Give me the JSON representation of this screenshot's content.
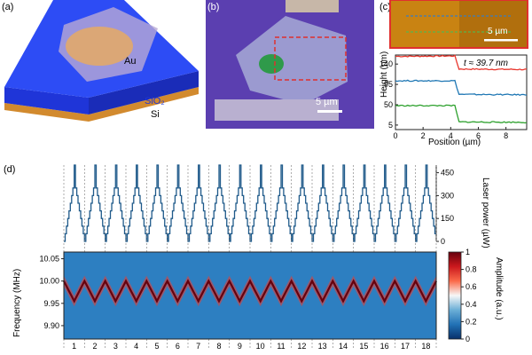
{
  "panel_a": {
    "label": "(a)",
    "au_label": "Au",
    "sio2_label": "SiO₂",
    "si_label": "Si"
  },
  "panel_b": {
    "label": "(b)",
    "scalebar": "5 µm"
  },
  "panel_c": {
    "label": "(c)",
    "scalebar": "5 µm",
    "thickness_annotation": "t ≈ 39.7 nm",
    "chart_data": {
      "type": "line",
      "xlabel": "Position (µm)",
      "ylabel": "Height (nm)",
      "xlim": [
        0,
        9.5
      ],
      "ylim": [
        -5,
        160
      ],
      "xticks": [
        0,
        2,
        4,
        6,
        8
      ],
      "yticks": [
        5,
        50,
        95,
        140
      ],
      "series": [
        {
          "color": "#e8372e",
          "x": [
            0,
            4.3,
            4.6,
            9.5
          ],
          "y": [
            157,
            158,
            129,
            128
          ]
        },
        {
          "color": "#1f77b4",
          "x": [
            0,
            4.3,
            4.6,
            9.5
          ],
          "y": [
            103,
            103,
            73,
            72
          ]
        },
        {
          "color": "#2ca02c",
          "x": [
            0,
            4.3,
            4.6,
            9.5
          ],
          "y": [
            48,
            48,
            12,
            11
          ]
        }
      ]
    }
  },
  "panel_d": {
    "label": "(d)",
    "chart_data": [
      {
        "type": "line",
        "ylabel": "Laser power (µW)",
        "ylim": [
          0,
          500
        ],
        "yticks": [
          0,
          150,
          300,
          450
        ],
        "series": [
          {
            "color": "#1f5a8a",
            "pattern": [
              0,
              50,
              100,
              150,
              200,
              250,
              300,
              350,
              500,
              350,
              300,
              250,
              200,
              150,
              100,
              50
            ],
            "cycles": 18
          }
        ]
      },
      {
        "type": "heatmap",
        "ylabel": "Frequency (MHz)",
        "ylim": [
          9.87,
          10.065
        ],
        "yticks": [
          9.9,
          9.95,
          10.0,
          10.05
        ],
        "xticks": [
          "1",
          "2",
          "3",
          "4",
          "5",
          "6",
          "7",
          "8",
          "9",
          "10",
          "11",
          "12",
          "13",
          "14",
          "15",
          "16",
          "17",
          "18"
        ],
        "resonance_max_mhz": 10.0,
        "resonance_min_mhz": 9.955,
        "cycles": 18
      }
    ],
    "colorbar": {
      "label": "Amplitude (a.u.)",
      "ticks": [
        "0",
        "0.2",
        "0.4",
        "0.6",
        "0.8",
        "1"
      ],
      "colors": [
        "#08306b",
        "#2171b5",
        "#6baed6",
        "#f7f7f7",
        "#fb6a4a",
        "#cb181d",
        "#67000d"
      ]
    }
  }
}
